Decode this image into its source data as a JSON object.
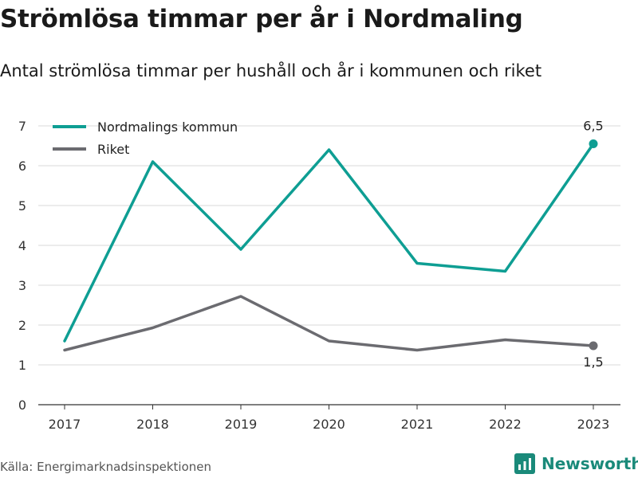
{
  "header": {
    "title": "Strömlösa timmar per år i Nordmaling",
    "subtitle": "Antal strömlösa timmar per hushåll och år i kommunen och riket"
  },
  "footer": {
    "source": "Källa: Energimarknadsinspektionen",
    "brand": "Newsworthy"
  },
  "colors": {
    "kommun": "#0e9e93",
    "riket": "#6b6b70",
    "grid": "#d9d9d9"
  },
  "chart_data": {
    "type": "line",
    "x": [
      "2017",
      "2018",
      "2019",
      "2020",
      "2021",
      "2022",
      "2023"
    ],
    "ylim": [
      0,
      7
    ],
    "yticks": [
      0,
      1,
      2,
      3,
      4,
      5,
      6,
      7
    ],
    "grid": true,
    "legend": "top-left",
    "series": [
      {
        "name": "Nordmalings kommun",
        "values": [
          1.6,
          6.1,
          3.9,
          6.4,
          3.55,
          3.35,
          6.55
        ],
        "end_label": "6,5"
      },
      {
        "name": "Riket",
        "values": [
          1.37,
          1.93,
          2.72,
          1.6,
          1.37,
          1.63,
          1.48
        ],
        "end_label": "1,5"
      }
    ]
  }
}
